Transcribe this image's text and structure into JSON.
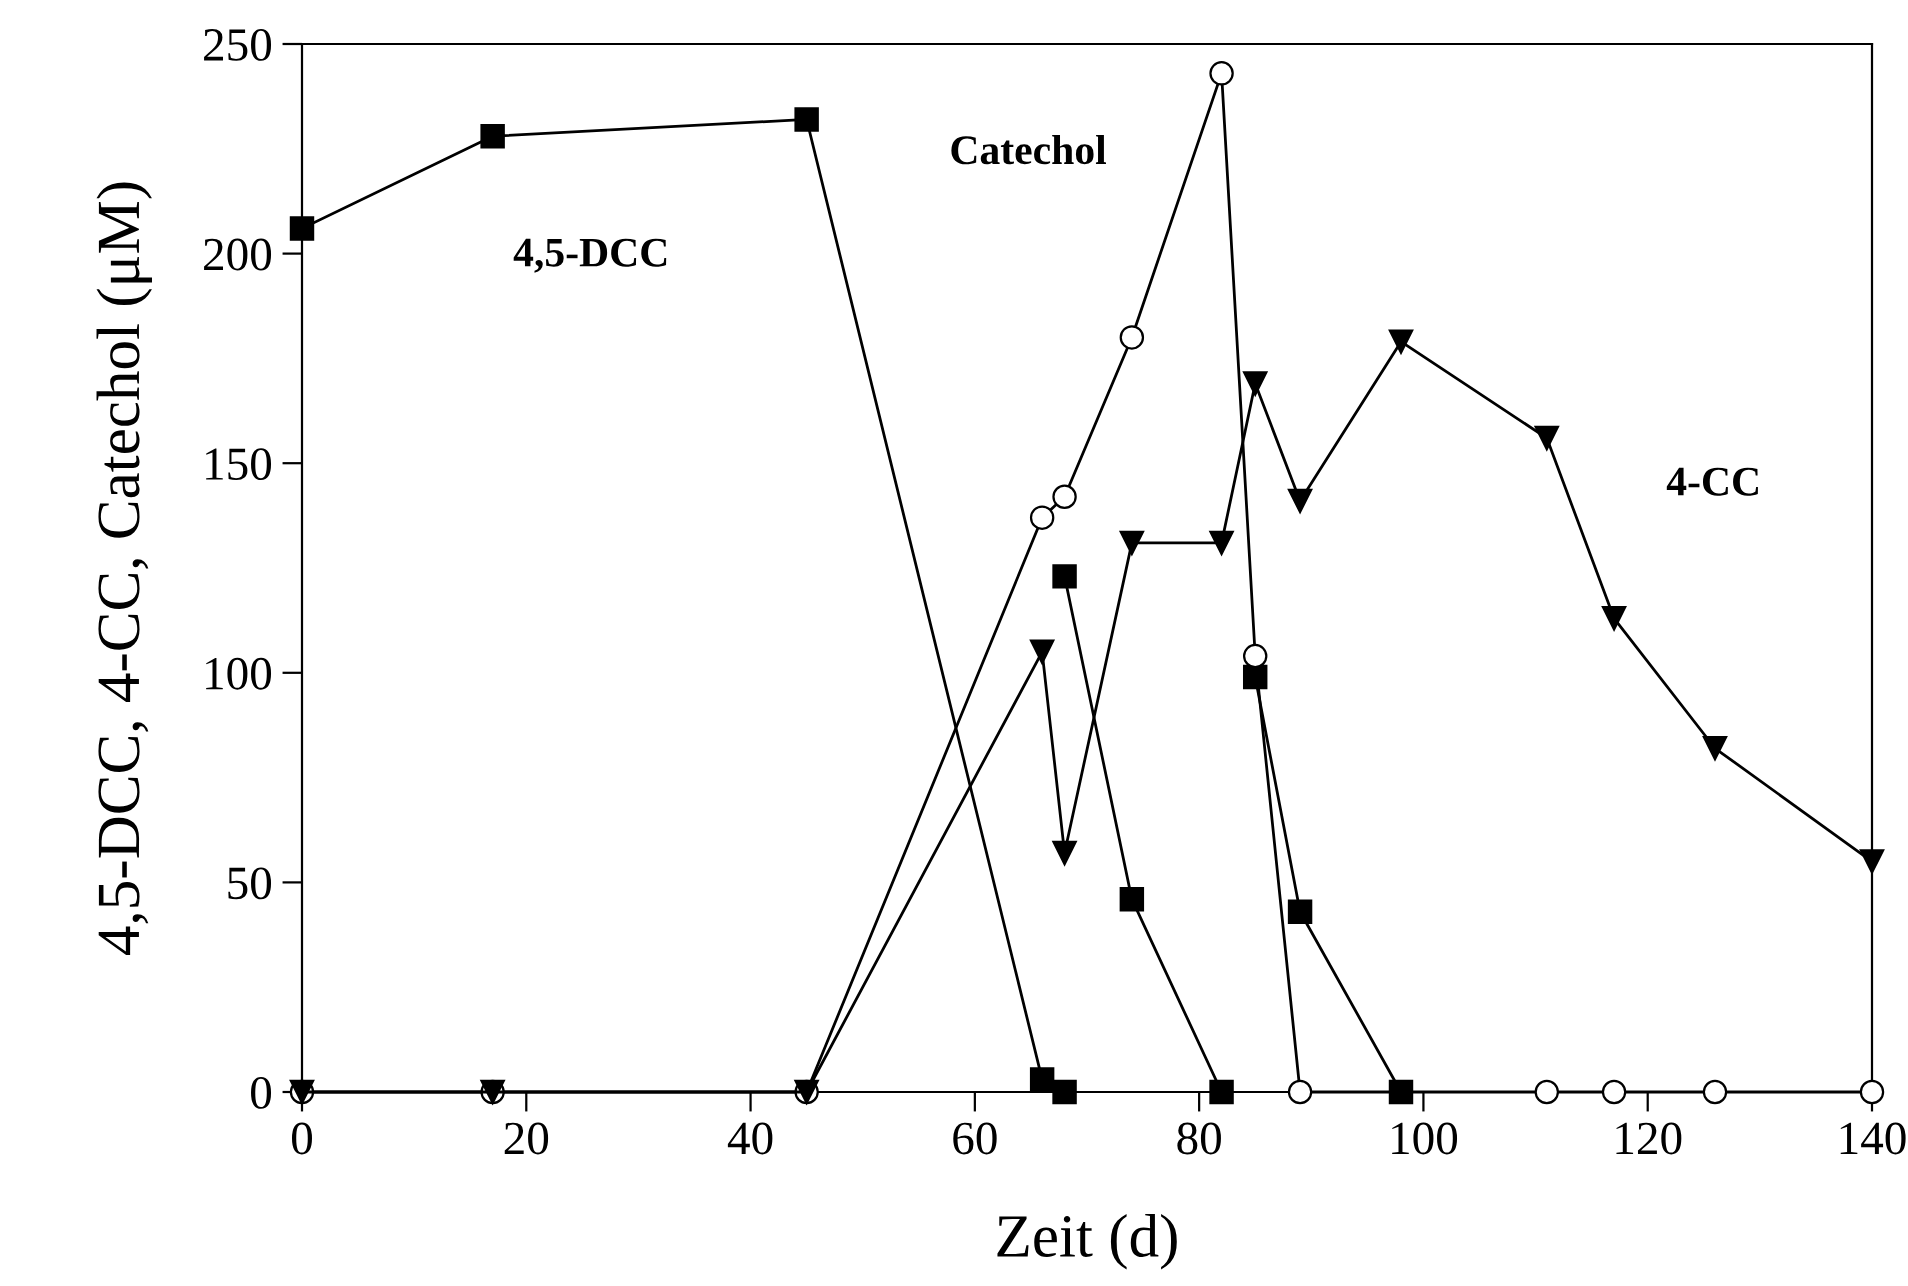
{
  "chart_data": {
    "type": "line",
    "xlabel": "Zeit (d)",
    "ylabel": "4,5-DCC, 4-CC, Catechol (μM)",
    "xlim": [
      0,
      140
    ],
    "xticks": [
      0,
      20,
      40,
      60,
      80,
      100,
      120,
      140
    ],
    "ylim": [
      0,
      250
    ],
    "yticks": [
      0,
      50,
      100,
      150,
      200,
      250
    ],
    "grid": false,
    "legend": false,
    "series": [
      {
        "name": "4,5-DCC",
        "color": "#000000",
        "marker": "square",
        "x": [
          0,
          17,
          45,
          66,
          68
        ],
        "values": [
          206,
          228,
          232,
          3,
          0
        ]
      },
      {
        "color": "#000000",
        "marker": "square",
        "x": [
          68,
          74,
          82
        ],
        "values": [
          123,
          46,
          0
        ]
      },
      {
        "color": "#000000",
        "marker": "square",
        "x": [
          85,
          89,
          98
        ],
        "values": [
          99,
          43,
          0
        ]
      },
      {
        "name": "Catechol",
        "color": "#000000",
        "marker": "circle",
        "x": [
          0,
          17,
          45,
          66,
          68,
          74,
          82,
          85,
          89,
          111,
          117,
          126,
          140
        ],
        "values": [
          0,
          0,
          0,
          137,
          142,
          180,
          243,
          104,
          0,
          0,
          0,
          0,
          0
        ]
      },
      {
        "name": "4-CC",
        "color": "#000000",
        "marker": "triangle",
        "x": [
          0,
          17,
          45,
          66,
          68,
          74,
          82,
          85,
          89,
          98,
          111,
          117,
          126,
          140
        ],
        "values": [
          0,
          0,
          0,
          105,
          57,
          131,
          131,
          169,
          141,
          179,
          156,
          113,
          82,
          55
        ]
      }
    ]
  }
}
